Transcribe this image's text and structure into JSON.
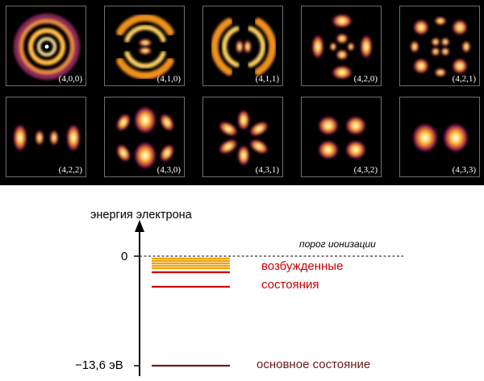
{
  "orbitals": [
    {
      "label": "(4,0,0)",
      "kind": "s"
    },
    {
      "label": "(4,1,0)",
      "kind": "p0"
    },
    {
      "label": "(4,1,1)",
      "kind": "p1"
    },
    {
      "label": "(4,2,0)",
      "kind": "d0"
    },
    {
      "label": "(4,2,1)",
      "kind": "d1"
    },
    {
      "label": "(4,2,2)",
      "kind": "d2"
    },
    {
      "label": "(4,3,0)",
      "kind": "f0"
    },
    {
      "label": "(4,3,1)",
      "kind": "f1"
    },
    {
      "label": "(4,3,2)",
      "kind": "f2"
    },
    {
      "label": "(4,3,3)",
      "kind": "f3"
    }
  ],
  "energy_diagram": {
    "axis_title": "энергия электрона",
    "zero_label": "0",
    "threshold_label": "порог ионизации",
    "ground_value_label": "−13,6 эВ",
    "excited_label_line1": "возбужденные",
    "excited_label_line2": "состояния",
    "ground_label": "основное состояние",
    "colors": {
      "excited": "#cc0000",
      "high_levels": "#f2a000",
      "ground": "#6e1818"
    }
  }
}
